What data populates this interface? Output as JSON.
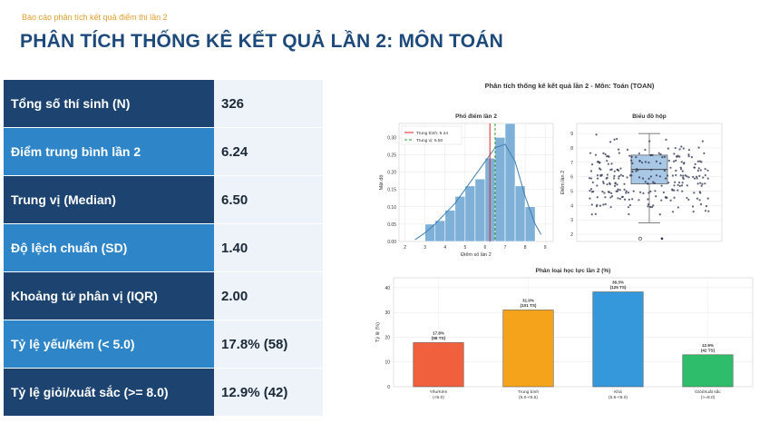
{
  "header": {
    "subtitle": "Báo cáo phân tích kết quả điểm thi lần 2",
    "title": "PHÂN TÍCH THỐNG KÊ KẾT QUẢ LẦN 2: MÔN TOÁN"
  },
  "stats": [
    {
      "label": "Tổng số thí sinh (N)",
      "value": "326"
    },
    {
      "label": "Điểm trung bình lần 2",
      "value": "6.24"
    },
    {
      "label": "Trung vị (Median)",
      "value": "6.50"
    },
    {
      "label": "Độ lệch chuẩn (SD)",
      "value": "1.40"
    },
    {
      "label": "Khoảng tứ phân vị (IQR)",
      "value": "2.00"
    },
    {
      "label": "Tỷ lệ yếu/kém (< 5.0)",
      "value": "17.8% (58)"
    },
    {
      "label": "Tỷ lệ giỏi/xuất sắc (>= 8.0)",
      "value": "12.9% (42)"
    }
  ],
  "figure": {
    "suptitle": "Phân tích thống kê kết quả lần 2 - Môn: Toán (TOAN)"
  },
  "chart_data": [
    {
      "type": "bar",
      "title": "Phổ điểm lần 2",
      "xlabel": "Điểm số lần 2",
      "ylabel": "Mật độ",
      "bin_edges": [
        3.0,
        3.5,
        4.0,
        4.5,
        5.0,
        5.5,
        6.0,
        6.5,
        7.0,
        7.5,
        8.0,
        8.5
      ],
      "values": [
        0.05,
        0.06,
        0.09,
        0.13,
        0.16,
        0.18,
        0.24,
        0.3,
        0.34,
        0.16,
        0.1
      ],
      "density_curve_x": [
        2.5,
        3.0,
        3.5,
        4.0,
        4.5,
        5.0,
        5.5,
        6.0,
        6.5,
        7.0,
        7.5,
        8.0,
        8.5,
        8.8
      ],
      "density_curve_y": [
        0.005,
        0.025,
        0.05,
        0.08,
        0.11,
        0.15,
        0.19,
        0.23,
        0.27,
        0.28,
        0.23,
        0.13,
        0.05,
        0.02
      ],
      "reference_lines": [
        {
          "name": "Trung bình: 6.24",
          "x": 6.24,
          "color": "#d62728",
          "style": "solid"
        },
        {
          "name": "Trung vị: 6.50",
          "x": 6.5,
          "color": "#2ca02c",
          "style": "dashed"
        }
      ],
      "xticks": [
        "2",
        "3",
        "4",
        "5",
        "6",
        "7",
        "8",
        "9"
      ],
      "yticks": [
        "0.00",
        "0.05",
        "0.10",
        "0.15",
        "0.20",
        "0.25",
        "0.30"
      ],
      "xlim": [
        1.7,
        9.4
      ],
      "ylim": [
        0,
        0.34
      ],
      "legend": "top-left",
      "color": "#7fb0d8"
    },
    {
      "type": "scatter",
      "title": "Biểu đồ hộp",
      "ylabel": "Điểm lần 2",
      "yticks": [
        "2",
        "3",
        "4",
        "5",
        "6",
        "7",
        "8",
        "9"
      ],
      "ylim": [
        1.5,
        9.7
      ],
      "box": {
        "q1": 5.5,
        "median": 6.5,
        "q3": 7.5,
        "whisker_low": 2.8,
        "whisker_high": 9.0
      },
      "outliers": [
        1.7,
        1.7
      ],
      "color": "#2a2f4a"
    },
    {
      "type": "bar",
      "title": "Phân loại học lực lần 2 (%)",
      "ylabel": "Tỷ lệ (%)",
      "categories": [
        "Yếu/Kém\n(<5.0)",
        "Trung bình\n(5.0-<6.5)",
        "Khá\n(6.5-<8.0)",
        "Giỏi/Xuất sắc\n(>=8.0)"
      ],
      "values": [
        17.8,
        31.0,
        38.3,
        12.9
      ],
      "data_labels": [
        "17.8%\n(58 TS)",
        "31.0%\n(101 TS)",
        "38.3%\n(125 TS)",
        "12.9%\n(42 TS)"
      ],
      "colors": [
        "#f0603c",
        "#f5a31a",
        "#3498db",
        "#2ebd6b"
      ],
      "yticks": [
        "0",
        "10",
        "20",
        "30",
        "40"
      ],
      "ylim": [
        0,
        44
      ]
    }
  ]
}
